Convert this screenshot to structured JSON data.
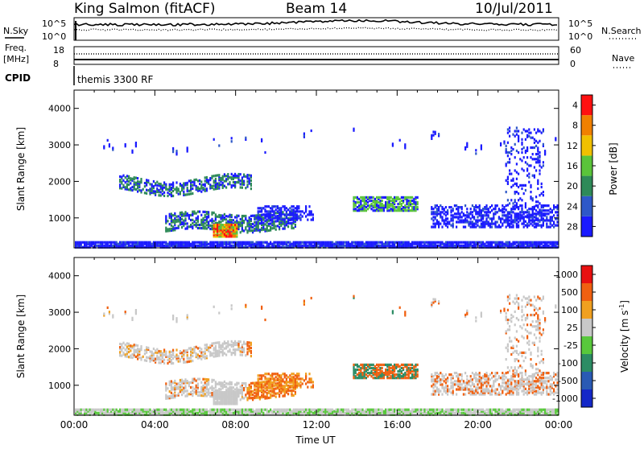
{
  "header": {
    "station": "King Salmon (fitACF)",
    "beam": "Beam 14",
    "date": "10/Jul/2011"
  },
  "status_panels": {
    "nsky_label": "N.Sky",
    "nsearch_label": "N.Search",
    "freq_label_top": "Freq.",
    "freq_label_unit": "[MHz]",
    "nave_label": "Nave",
    "cpid_label": "CPID",
    "cpid_value": "themis 3300 RF",
    "noise_ticks_left": [
      "10^5",
      "10^0"
    ],
    "noise_ticks_right": [
      "10^5",
      "10^0"
    ],
    "freq_ticks_left": [
      "18",
      "8"
    ],
    "nave_ticks_right": [
      "60",
      "0"
    ]
  },
  "chart_data": [
    {
      "type": "heatmap",
      "name": "power",
      "ylabel": "Slant Range [km]",
      "xlabel": "",
      "ylim": [
        180,
        4500
      ],
      "yticks": [
        1000,
        2000,
        3000,
        4000
      ],
      "xlim_hours": [
        0,
        24
      ],
      "colorbar": {
        "title": "Power [dB]",
        "ticks": [
          "4",
          "8",
          "12",
          "16",
          "20",
          "24",
          "28"
        ],
        "colors": [
          "#1a1aff",
          "#2e58c8",
          "#2e8a58",
          "#5ac43a",
          "#f0c000",
          "#f08000",
          "#ff1010"
        ]
      }
    },
    {
      "type": "heatmap",
      "name": "velocity",
      "ylabel": "Slant Range [km]",
      "xlabel": "Time UT",
      "ylim": [
        180,
        4500
      ],
      "yticks": [
        1000,
        2000,
        3000,
        4000
      ],
      "xticks": [
        "00:00",
        "04:00",
        "08:00",
        "12:00",
        "16:00",
        "20:00",
        "00:00"
      ],
      "colorbar": {
        "title": "Velocity [m s",
        "title_sup": "-1",
        "title_close": "]",
        "ticks": [
          "1000",
          "500",
          "100",
          "25",
          "-25",
          "-100",
          "-500",
          "-1000"
        ],
        "colors": [
          "#1428c8",
          "#2a5ab4",
          "#2c8c64",
          "#58c83c",
          "#c8c8c8",
          "#f0a020",
          "#f06010",
          "#e81010"
        ]
      }
    }
  ]
}
